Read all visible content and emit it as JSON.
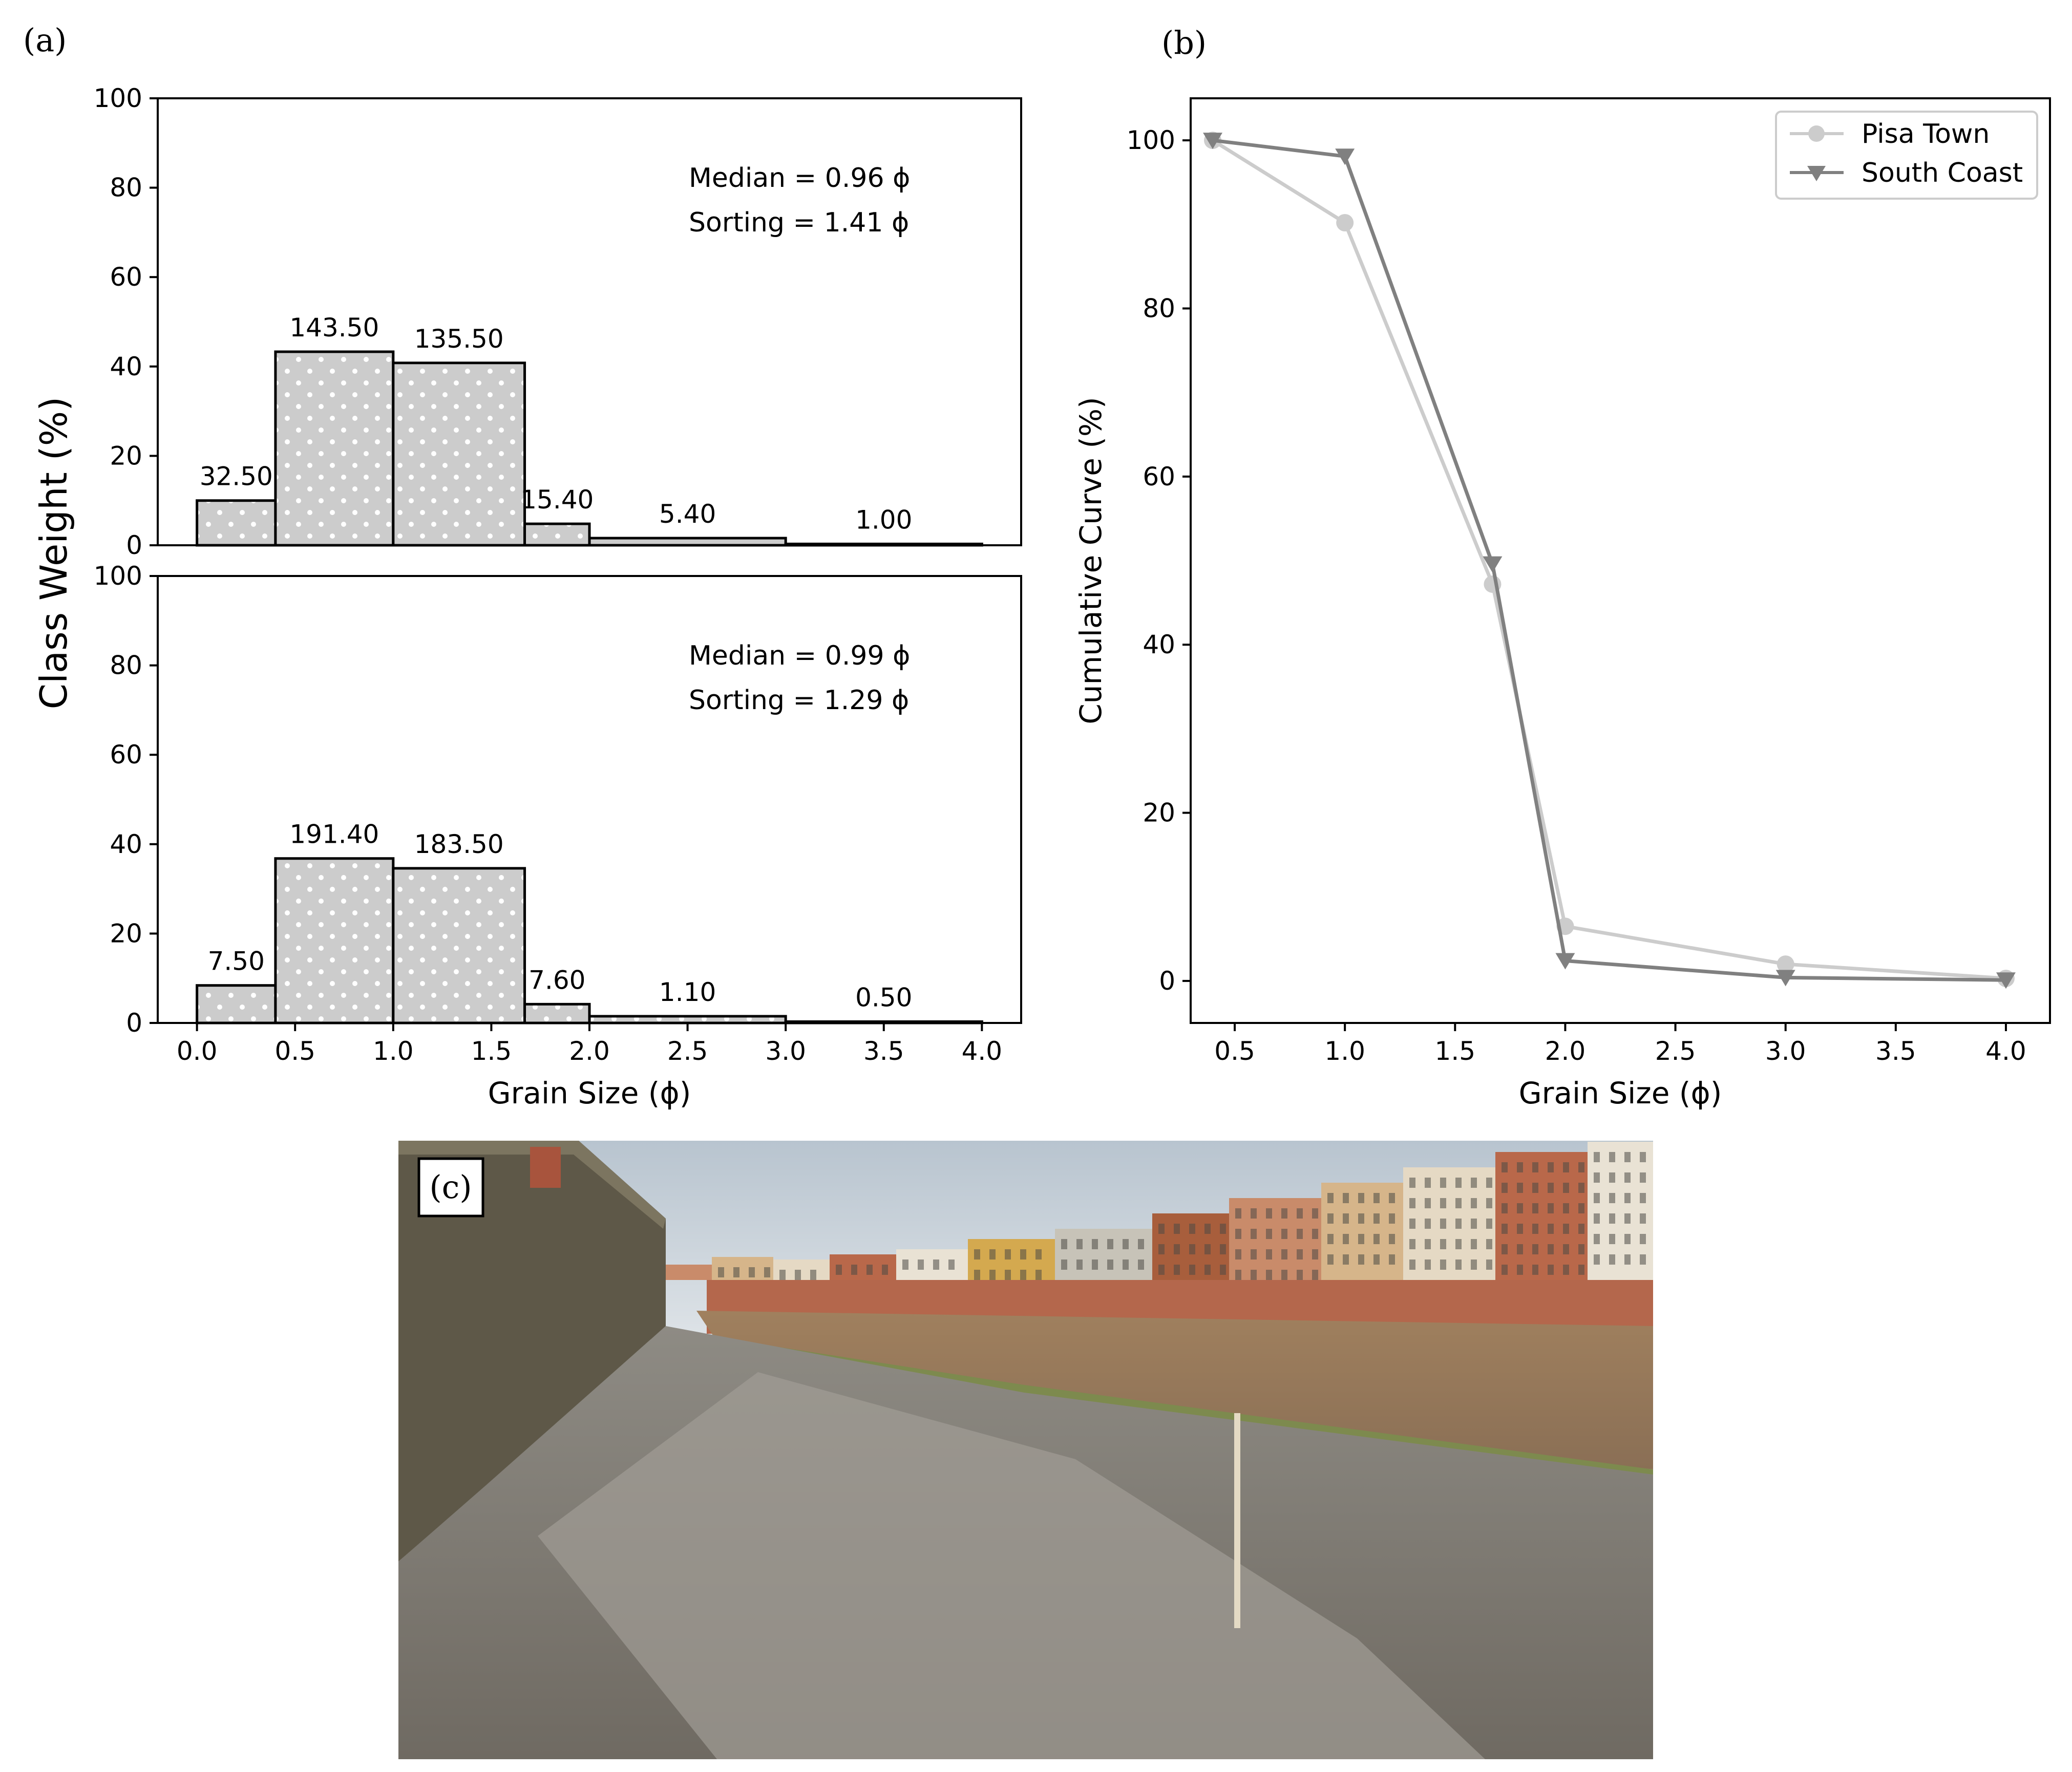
{
  "panels": {
    "a_label": "(a)",
    "b_label": "(b)",
    "c_label": "(c)"
  },
  "chart_data": [
    {
      "id": "a-top",
      "type": "bar",
      "bin_edges": [
        0.0,
        0.4,
        1.0,
        1.67,
        2.0,
        3.0,
        4.0
      ],
      "values": [
        10,
        43.3,
        40.8,
        4.8,
        1.6,
        0.3
      ],
      "bar_labels": [
        "32.50",
        "143.50",
        "135.50",
        "15.40",
        "5.40",
        "1.00"
      ],
      "stats": [
        "Median = 0.96 ϕ",
        "Sorting = 1.41 ϕ"
      ],
      "ylim": [
        0,
        100
      ],
      "xlim": [
        -0.2,
        4.2
      ],
      "yticks": [
        "0",
        "20",
        "40",
        "60",
        "80",
        "100"
      ],
      "fill": "#cccccc",
      "dot_color": "#ffffff"
    },
    {
      "id": "a-bottom",
      "type": "bar",
      "bin_edges": [
        0.0,
        0.4,
        1.0,
        1.67,
        2.0,
        3.0,
        4.0
      ],
      "values": [
        8.4,
        36.8,
        34.6,
        4.2,
        1.5,
        0.3
      ],
      "bar_labels": [
        "7.50",
        "191.40",
        "183.50",
        "7.60",
        "1.10",
        "0.50"
      ],
      "stats": [
        "Median = 0.99 ϕ",
        "Sorting = 1.29 ϕ"
      ],
      "ylim": [
        0,
        100
      ],
      "xlim": [
        -0.2,
        4.2
      ],
      "yticks": [
        "0",
        "20",
        "40",
        "60",
        "80",
        "100"
      ],
      "xticks": [
        "0.0",
        "0.5",
        "1.0",
        "1.5",
        "2.0",
        "2.5",
        "3.0",
        "3.5",
        "4.0"
      ],
      "xlabel": "Grain Size (ϕ)",
      "fill": "#cccccc",
      "dot_color": "#ffffff"
    },
    {
      "id": "b",
      "type": "line",
      "xlabel": "Grain Size (ϕ)",
      "ylabel": "Cumulative Curve (%)",
      "xlim": [
        0.3,
        4.2
      ],
      "ylim": [
        -5,
        105
      ],
      "xticks": [
        "0.5",
        "1.0",
        "1.5",
        "2.0",
        "2.5",
        "3.0",
        "3.5",
        "4.0"
      ],
      "yticks": [
        "0",
        "20",
        "40",
        "60",
        "80",
        "100"
      ],
      "legend_position": "top-right",
      "series": [
        {
          "name": "Pisa Town",
          "marker": "circle",
          "color": "#cccccc",
          "x": [
            0.4,
            1.0,
            1.67,
            2.0,
            3.0,
            4.0
          ],
          "y": [
            100,
            90.2,
            47.2,
            6.5,
            2.0,
            0.3
          ]
        },
        {
          "name": "South Coast",
          "marker": "triangle-down",
          "color": "#808080",
          "x": [
            0.4,
            1.0,
            1.67,
            2.0,
            3.0,
            4.0
          ],
          "y": [
            100,
            98.1,
            49.6,
            2.4,
            0.4,
            0.1
          ]
        }
      ]
    }
  ],
  "shared_ylabel": "Class Weight (%)",
  "photo": {
    "sky": "#c9d3dc",
    "wall": "#5e5848",
    "water": "#9a7a5c",
    "sand": "#8f8b82",
    "grass": "#7d8a4e",
    "facade_colors": [
      "#c98b6a",
      "#d6b58a",
      "#e5d9c4",
      "#b9684a",
      "#e9e2d4",
      "#d4a94f",
      "#c7c3b8",
      "#a85e3c"
    ]
  }
}
